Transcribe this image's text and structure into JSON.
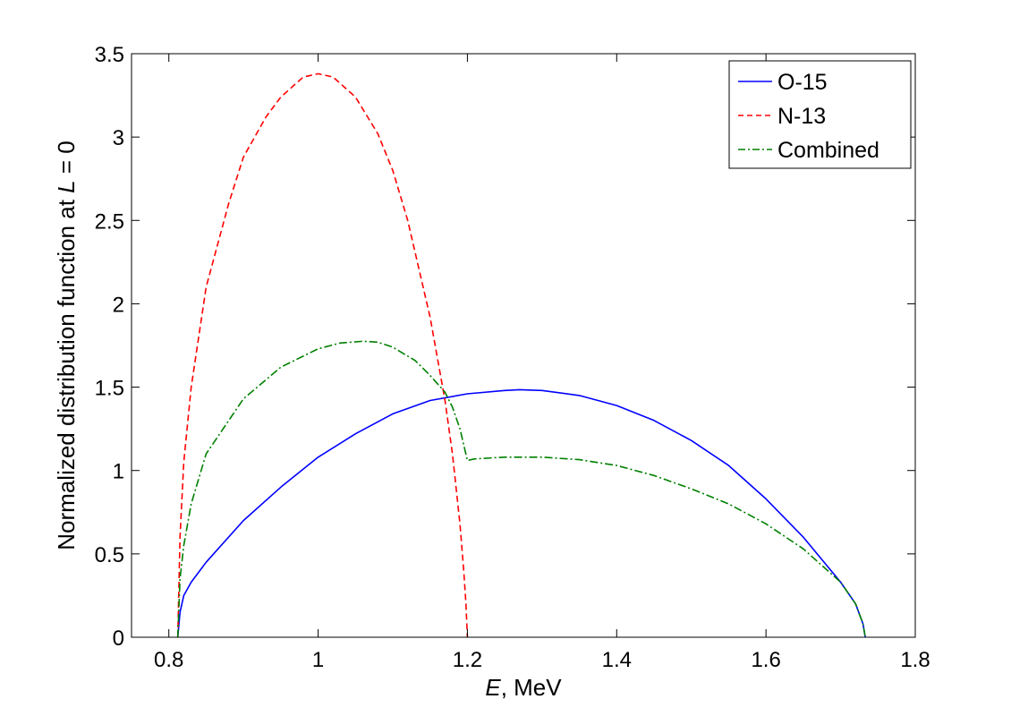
{
  "chart_data": {
    "type": "line",
    "xlabel": {
      "var": "E",
      "rest": ", MeV"
    },
    "ylabel": {
      "pre": "Normalized distribution function at ",
      "var": "L",
      "post": " = 0"
    },
    "xlim": [
      0.75,
      1.8
    ],
    "ylim": [
      0,
      3.5
    ],
    "xticks": [
      0.8,
      1.0,
      1.2,
      1.4,
      1.6,
      1.8
    ],
    "xtick_labels": [
      "0.8",
      "1",
      "1.2",
      "1.4",
      "1.6",
      "1.8"
    ],
    "yticks": [
      0,
      0.5,
      1,
      1.5,
      2,
      2.5,
      3,
      3.5
    ],
    "ytick_labels": [
      "0",
      "0.5",
      "1",
      "1.5",
      "2",
      "2.5",
      "3",
      "3.5"
    ],
    "grid": false,
    "legend_position": "top-right",
    "series": [
      {
        "name": "O-15",
        "color": "#0000ff",
        "style": "solid",
        "x": [
          0.812,
          0.815,
          0.82,
          0.83,
          0.85,
          0.9,
          0.95,
          1.0,
          1.05,
          1.1,
          1.15,
          1.2,
          1.25,
          1.27,
          1.3,
          1.35,
          1.4,
          1.45,
          1.5,
          1.55,
          1.6,
          1.65,
          1.7,
          1.72,
          1.73,
          1.733
        ],
        "y": [
          0.0,
          0.15,
          0.25,
          0.33,
          0.45,
          0.7,
          0.9,
          1.08,
          1.22,
          1.34,
          1.42,
          1.46,
          1.48,
          1.485,
          1.48,
          1.45,
          1.39,
          1.3,
          1.18,
          1.03,
          0.83,
          0.6,
          0.33,
          0.2,
          0.08,
          0.0
        ]
      },
      {
        "name": "N-13",
        "color": "#ff0000",
        "style": "dashed",
        "x": [
          0.812,
          0.815,
          0.82,
          0.83,
          0.85,
          0.88,
          0.9,
          0.93,
          0.95,
          0.98,
          1.0,
          1.02,
          1.05,
          1.08,
          1.1,
          1.12,
          1.15,
          1.17,
          1.18,
          1.19,
          1.195,
          1.198,
          1.2
        ],
        "y": [
          0.0,
          0.6,
          1.05,
          1.5,
          2.1,
          2.6,
          2.88,
          3.12,
          3.24,
          3.36,
          3.38,
          3.36,
          3.24,
          3.02,
          2.8,
          2.5,
          1.92,
          1.42,
          1.1,
          0.68,
          0.4,
          0.2,
          0.0
        ]
      },
      {
        "name": "Combined",
        "color": "#008000",
        "style": "dashdot",
        "x": [
          0.812,
          0.815,
          0.82,
          0.83,
          0.85,
          0.9,
          0.95,
          1.0,
          1.03,
          1.06,
          1.08,
          1.1,
          1.13,
          1.15,
          1.17,
          1.18,
          1.19,
          1.2,
          1.21,
          1.25,
          1.3,
          1.35,
          1.4,
          1.45,
          1.5,
          1.55,
          1.6,
          1.65,
          1.7,
          1.72,
          1.73,
          1.733
        ],
        "y": [
          0.0,
          0.35,
          0.55,
          0.8,
          1.1,
          1.43,
          1.62,
          1.73,
          1.765,
          1.775,
          1.77,
          1.74,
          1.66,
          1.57,
          1.47,
          1.38,
          1.25,
          1.06,
          1.07,
          1.08,
          1.08,
          1.065,
          1.03,
          0.97,
          0.89,
          0.8,
          0.68,
          0.53,
          0.33,
          0.2,
          0.08,
          0.0
        ]
      }
    ]
  }
}
